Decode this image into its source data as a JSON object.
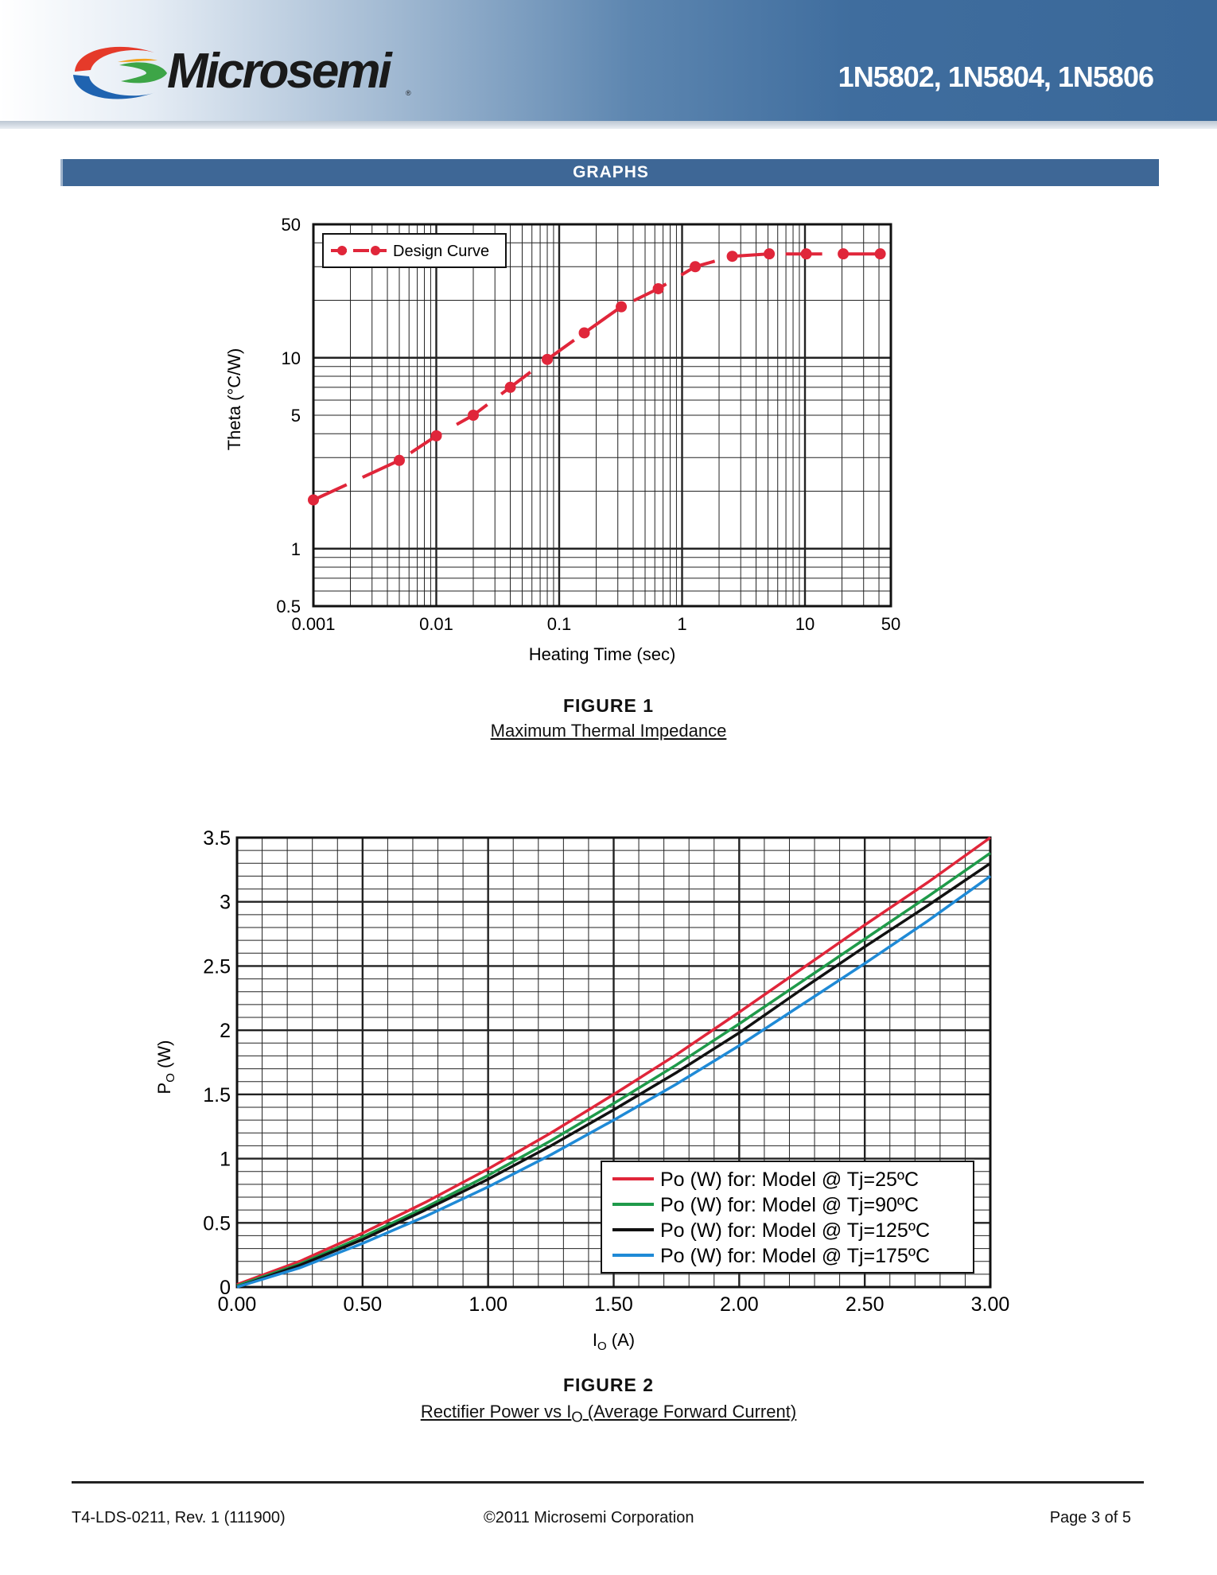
{
  "header": {
    "brand": "Microsemi",
    "part_numbers": "1N5802, 1N5804, 1N5806",
    "colors": {
      "band_dark": "#3a6899",
      "logo_red": "#e53a2a",
      "logo_blue": "#1f63b0",
      "logo_green": "#3da547"
    }
  },
  "section": {
    "title": "GRAPHS"
  },
  "figure1": {
    "label": "FIGURE 1",
    "caption": "Maximum Thermal Impedance"
  },
  "figure2": {
    "label": "FIGURE 2",
    "caption_prefix": "Rectifier Power vs I",
    "caption_sub": "O",
    "caption_suffix": " (Average Forward Current)"
  },
  "chart_data": [
    {
      "type": "line",
      "scale": "log-log",
      "xlabel": "Heating Time (sec)",
      "ylabel": "Theta (°C/W)",
      "xlim": [
        0.001,
        50
      ],
      "ylim": [
        0.5,
        50
      ],
      "x_ticks": [
        "0.001",
        "0.01",
        "0.1",
        "1",
        "10",
        "50"
      ],
      "y_ticks": [
        "0.5",
        "1",
        "5",
        "10",
        "50"
      ],
      "legend": {
        "position": "top-left"
      },
      "series": [
        {
          "name": "Design Curve",
          "color": "#e0263a",
          "x": [
            0.001,
            0.005,
            0.01,
            0.02,
            0.04,
            0.08,
            0.16,
            0.32,
            0.64,
            1.28,
            2.56,
            5.12,
            10.24,
            20.48,
            40.96
          ],
          "y": [
            1.8,
            2.9,
            3.9,
            5.0,
            7.0,
            9.8,
            13.5,
            18.5,
            23.0,
            30.0,
            34.0,
            35.0,
            35.0,
            35.0,
            35.0
          ]
        }
      ]
    },
    {
      "type": "line",
      "xlabel_main": "I",
      "xlabel_sub": "O",
      "xlabel_unit": " (A)",
      "ylabel_main": "P",
      "ylabel_sub": "O",
      "ylabel_unit": " (W)",
      "xlim": [
        0,
        3
      ],
      "ylim": [
        0,
        3.5
      ],
      "x_ticks": [
        "0.00",
        "0.50",
        "1.00",
        "1.50",
        "2.00",
        "2.50",
        "3.00"
      ],
      "y_ticks": [
        "0",
        "0.5",
        "1",
        "1.5",
        "2",
        "2.5",
        "3",
        "3.5"
      ],
      "legend": {
        "position": "bottom-right"
      },
      "series": [
        {
          "name": "Po (W) for: Model @ Tj=25ºC",
          "color": "#e0263a",
          "x": [
            0,
            0.25,
            0.5,
            0.75,
            1.0,
            1.25,
            1.5,
            1.75,
            2.0,
            2.25,
            2.5,
            2.75,
            3.0
          ],
          "y": [
            0.02,
            0.2,
            0.42,
            0.66,
            0.92,
            1.2,
            1.5,
            1.81,
            2.14,
            2.48,
            2.82,
            3.15,
            3.5
          ]
        },
        {
          "name": "Po (W) for: Model @ Tj=90ºC",
          "color": "#1f9a4a",
          "x": [
            0,
            0.25,
            0.5,
            0.75,
            1.0,
            1.25,
            1.5,
            1.75,
            2.0,
            2.25,
            2.5,
            2.75,
            3.0
          ],
          "y": [
            0.01,
            0.18,
            0.39,
            0.62,
            0.87,
            1.14,
            1.43,
            1.73,
            2.05,
            2.38,
            2.71,
            3.04,
            3.38
          ]
        },
        {
          "name": "Po (W) for: Model @ Tj=125ºC",
          "color": "#111111",
          "x": [
            0,
            0.25,
            0.5,
            0.75,
            1.0,
            1.25,
            1.5,
            1.75,
            2.0,
            2.25,
            2.5,
            2.75,
            3.0
          ],
          "y": [
            0.0,
            0.17,
            0.37,
            0.6,
            0.84,
            1.1,
            1.38,
            1.67,
            1.98,
            2.32,
            2.65,
            2.97,
            3.3
          ]
        },
        {
          "name": "Po (W) for: Model @ Tj=175ºC",
          "color": "#1f8ad6",
          "x": [
            0,
            0.25,
            0.5,
            0.75,
            1.0,
            1.25,
            1.5,
            1.75,
            2.0,
            2.25,
            2.5,
            2.75,
            3.0
          ],
          "y": [
            0.0,
            0.15,
            0.34,
            0.55,
            0.78,
            1.03,
            1.3,
            1.58,
            1.88,
            2.2,
            2.52,
            2.85,
            3.2
          ]
        }
      ]
    }
  ],
  "footer": {
    "doc_id": "T4-LDS-0211, Rev. 1 (111900)",
    "copyright": "©2011 Microsemi Corporation",
    "page": "Page 3 of 5"
  }
}
